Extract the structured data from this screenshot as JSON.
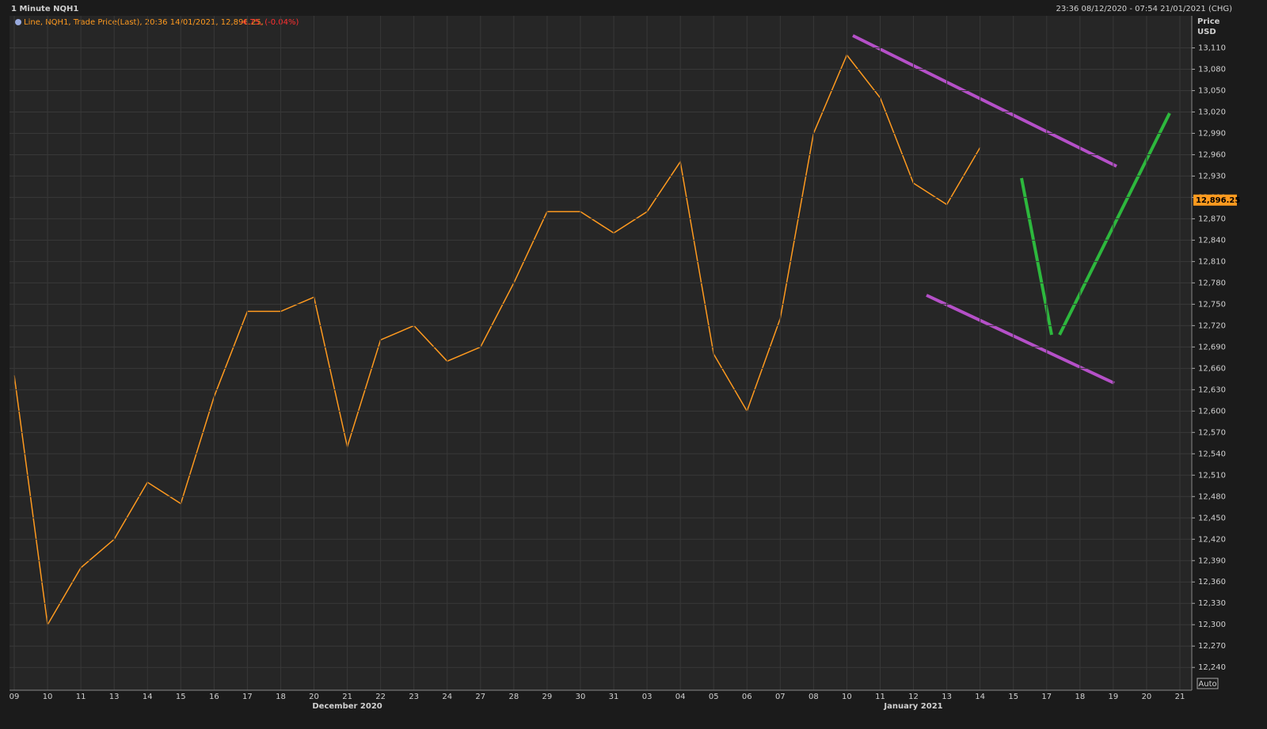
{
  "header": {
    "title": "1 Minute NQH1",
    "range": "23:36 08/12/2020 - 07:54 21/01/2021 (CHG)"
  },
  "chart_data": {
    "type": "line",
    "legend_text": "Line, NQH1, Trade Price(Last), 20:36 14/01/2021, 12,896.25,",
    "legend_change": "-4.75, (-0.04%)",
    "y_axis_label": "Price",
    "y_axis_unit": "USD",
    "auto_button": "Auto",
    "months": [
      "December 2020",
      "January 2021"
    ],
    "categories": [
      "09",
      "10",
      "11",
      "13",
      "14",
      "15",
      "16",
      "17",
      "18",
      "20",
      "21",
      "22",
      "23",
      "24",
      "27",
      "28",
      "29",
      "30",
      "31",
      "03",
      "04",
      "05",
      "06",
      "07",
      "08",
      "10",
      "11",
      "12",
      "13",
      "14",
      "15",
      "17",
      "18",
      "19",
      "20",
      "21"
    ],
    "series": [
      {
        "name": "NQH1",
        "color": "#ff9a1f",
        "values": [
          12650,
          12300,
          12380,
          12420,
          12500,
          12470,
          12620,
          12740,
          12740,
          12760,
          12550,
          12700,
          12720,
          12670,
          12690,
          12780,
          12880,
          12880,
          12850,
          12880,
          12950,
          12680,
          12600,
          12730,
          12990,
          13100,
          13040,
          12920,
          12890,
          12970,
          null,
          null,
          null,
          null,
          null,
          null
        ]
      }
    ],
    "last_price": {
      "value": 12896.25,
      "label": "12,896.25"
    },
    "ylim": [
      12208,
      13155
    ],
    "yticks": [
      {
        "value": 12240,
        "label": "12,240"
      },
      {
        "value": 12270,
        "label": "12,270"
      },
      {
        "value": 12300,
        "label": "12,300"
      },
      {
        "value": 12330,
        "label": "12,330"
      },
      {
        "value": 12360,
        "label": "12,360"
      },
      {
        "value": 12390,
        "label": "12,390"
      },
      {
        "value": 12420,
        "label": "12,420"
      },
      {
        "value": 12450,
        "label": "12,450"
      },
      {
        "value": 12480,
        "label": "12,480"
      },
      {
        "value": 12510,
        "label": "12,510"
      },
      {
        "value": 12540,
        "label": "12,540"
      },
      {
        "value": 12570,
        "label": "12,570"
      },
      {
        "value": 12600,
        "label": "12,600"
      },
      {
        "value": 12630,
        "label": "12,630"
      },
      {
        "value": 12660,
        "label": "12,660"
      },
      {
        "value": 12690,
        "label": "12,690"
      },
      {
        "value": 12720,
        "label": "12,720"
      },
      {
        "value": 12750,
        "label": "12,750"
      },
      {
        "value": 12780,
        "label": "12,780"
      },
      {
        "value": 12810,
        "label": "12,810"
      },
      {
        "value": 12840,
        "label": "12,840"
      },
      {
        "value": 12870,
        "label": "12,870"
      },
      {
        "value": 12900,
        "label": "12,900"
      },
      {
        "value": 12930,
        "label": "12,930"
      },
      {
        "value": 12960,
        "label": "12,960"
      },
      {
        "value": 12990,
        "label": "12,990"
      },
      {
        "value": 13020,
        "label": "13,020"
      },
      {
        "value": 13050,
        "label": "13,050"
      },
      {
        "value": 13080,
        "label": "13,080"
      },
      {
        "value": 13110,
        "label": "13,110"
      }
    ],
    "grid": true
  }
}
